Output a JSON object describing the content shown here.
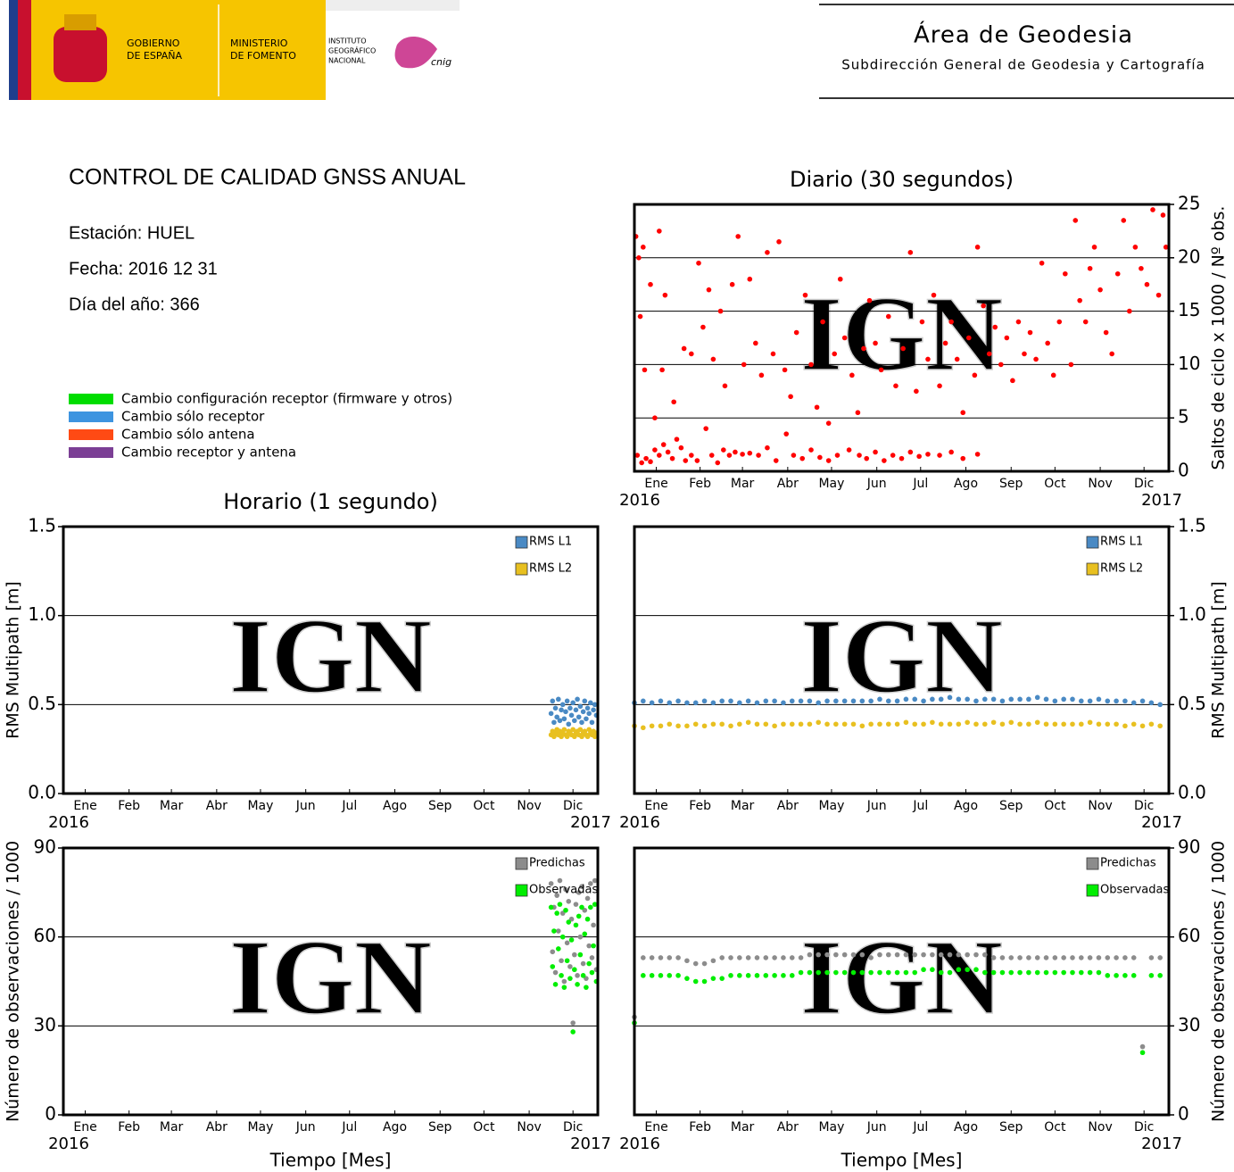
{
  "header": {
    "gobierno": [
      "GOBIERNO",
      "DE ESPAÑA"
    ],
    "ministerio": [
      "MINISTERIO",
      "DE FOMENTO"
    ],
    "instituto": [
      "INSTITUTO",
      "GEOGRÁFICO",
      "NACIONAL"
    ],
    "cnig": "cnig",
    "area": "Área de Geodesia",
    "subdireccion": "Subdirección General de Geodesia y Cartografía"
  },
  "report": {
    "title": "CONTROL DE CALIDAD GNSS ANUAL",
    "estacion": "Estación: HUEL",
    "fecha": "Fecha: 2016 12 31",
    "dia": "Día del año: 366"
  },
  "legend": [
    {
      "label": "Cambio configuración receptor (firmware y otros)",
      "color": "#00dd00"
    },
    {
      "label": "Cambio sólo receptor",
      "color": "#3d94e0"
    },
    {
      "label": "Cambio sólo antena",
      "color": "#ff4a14"
    },
    {
      "label": "Cambio receptor y antena",
      "color": "#7b3f95"
    }
  ],
  "watermark": "IGN",
  "time_axis": {
    "xlim": [
      1,
      367
    ],
    "xticks": [
      {
        "value": 16,
        "label": "Ene"
      },
      {
        "value": 46,
        "label": "Feb"
      },
      {
        "value": 75,
        "label": "Mar"
      },
      {
        "value": 106,
        "label": "Abr"
      },
      {
        "value": 136,
        "label": "May"
      },
      {
        "value": 167,
        "label": "Jun"
      },
      {
        "value": 197,
        "label": "Jul"
      },
      {
        "value": 228,
        "label": "Ago"
      },
      {
        "value": 259,
        "label": "Sep"
      },
      {
        "value": 289,
        "label": "Oct"
      },
      {
        "value": 320,
        "label": "Nov"
      },
      {
        "value": 350,
        "label": "Dic"
      }
    ],
    "year_ticks": [
      {
        "value": 1,
        "label": "2016"
      },
      {
        "value": 367,
        "label": "2017"
      }
    ]
  },
  "chart_data": [
    {
      "type": "scatter",
      "title": "Diario (30 segundos)",
      "y_label": "Saltos de ciclo x 1000 / Nº obs.",
      "y_axis_side": "right",
      "ylim": [
        0,
        25
      ],
      "yticks": [
        0,
        5,
        10,
        15,
        20,
        25
      ],
      "grid": true,
      "color": "#ff0000",
      "x": [
        3,
        6,
        9,
        12,
        15,
        18,
        21,
        24,
        27,
        30,
        33,
        36,
        40,
        44,
        50,
        54,
        58,
        62,
        66,
        70,
        75,
        80,
        86,
        92,
        98,
        105,
        110,
        116,
        122,
        128,
        134,
        140,
        148,
        155,
        160,
        166,
        172,
        178,
        184,
        190,
        196,
        202,
        210,
        218,
        226,
        236,
        2,
        4,
        5,
        7,
        8,
        12,
        15,
        18,
        20,
        22,
        28,
        35,
        40,
        45,
        48,
        52,
        55,
        60,
        63,
        68,
        72,
        76,
        80,
        84,
        88,
        92,
        96,
        100,
        104,
        108,
        112,
        118,
        122,
        126,
        130,
        134,
        138,
        142,
        145,
        150,
        154,
        158,
        162,
        166,
        170,
        175,
        180,
        185,
        190,
        194,
        198,
        202,
        206,
        210,
        214,
        218,
        222,
        226,
        230,
        234,
        236,
        240,
        244,
        248,
        252,
        256,
        260,
        264,
        268,
        272,
        276,
        280,
        284,
        288,
        292,
        296,
        300,
        303,
        306,
        310,
        313,
        316,
        320,
        324,
        328,
        332,
        336,
        340,
        344,
        348,
        352,
        356,
        360,
        363,
        365
      ],
      "values": [
        1.5,
        0.8,
        1.2,
        0.9,
        2.0,
        1.5,
        2.5,
        1.8,
        1.2,
        3.0,
        2.2,
        1.0,
        1.5,
        1.0,
        4.0,
        1.5,
        0.8,
        2.0,
        1.5,
        1.8,
        1.6,
        1.7,
        1.5,
        2.2,
        1.0,
        3.5,
        1.5,
        1.2,
        2.0,
        1.3,
        1.0,
        1.5,
        2.0,
        1.5,
        1.2,
        1.8,
        1.0,
        1.5,
        1.2,
        1.8,
        1.4,
        1.6,
        1.5,
        1.8,
        1.2,
        1.6,
        22,
        20,
        14.5,
        21,
        9.5,
        17.5,
        5,
        22.5,
        9.5,
        16.5,
        6.5,
        11.5,
        11,
        19.5,
        13.5,
        17,
        10.5,
        15,
        8,
        17.5,
        22,
        10,
        18,
        12,
        9,
        20.5,
        11,
        21.5,
        9.5,
        7,
        13,
        16.5,
        10,
        6,
        14,
        4.5,
        11,
        18,
        12.5,
        9,
        5.5,
        11.5,
        16,
        12,
        9.5,
        14.5,
        8,
        11.5,
        20.5,
        7.5,
        14,
        10.5,
        16.5,
        8,
        12,
        14,
        10.5,
        5.5,
        12.5,
        9,
        21,
        15.5,
        11,
        13.5,
        10,
        12.5,
        8.5,
        14,
        11,
        13,
        10.5,
        19.5,
        12,
        9,
        14,
        18.5,
        10,
        23.5,
        16,
        14,
        19,
        21,
        17,
        13,
        11,
        18.5,
        23.5,
        15,
        21,
        19,
        17.5,
        24.5,
        16.5,
        24,
        21
      ]
    },
    {
      "type": "scatter",
      "title": "Horario (1 segundo)",
      "y_label": "RMS Multipath [m]",
      "y_axis_side": "left",
      "ylim": [
        0,
        1.5
      ],
      "yticks": [
        {
          "value": 0,
          "label": "0.0"
        },
        {
          "value": 0.5,
          "label": "0.5"
        },
        {
          "value": 1,
          "label": "1.0"
        },
        {
          "value": 1.5,
          "label": "1.5"
        }
      ],
      "grid": true,
      "x": [
        335,
        336,
        337,
        338,
        339,
        340,
        341,
        342,
        343,
        344,
        345,
        346,
        347,
        348,
        349,
        350,
        351,
        352,
        353,
        354,
        355,
        356,
        357,
        358,
        359,
        360,
        361,
        362,
        363,
        364,
        365,
        366
      ],
      "series": [
        {
          "name": "RMS L1",
          "color": "#4a8ac4",
          "values": [
            0.45,
            0.52,
            0.4,
            0.48,
            0.43,
            0.53,
            0.41,
            0.47,
            0.5,
            0.42,
            0.46,
            0.52,
            0.39,
            0.48,
            0.44,
            0.51,
            0.41,
            0.47,
            0.53,
            0.43,
            0.49,
            0.4,
            0.46,
            0.52,
            0.42,
            0.48,
            0.45,
            0.51,
            0.4,
            0.47,
            0.5,
            0.44
          ]
        },
        {
          "name": "RMS L2",
          "color": "#e8c020",
          "values": [
            0.33,
            0.35,
            0.32,
            0.34,
            0.36,
            0.33,
            0.35,
            0.32,
            0.34,
            0.36,
            0.33,
            0.32,
            0.35,
            0.34,
            0.33,
            0.36,
            0.32,
            0.34,
            0.35,
            0.33,
            0.36,
            0.32,
            0.34,
            0.35,
            0.33,
            0.32,
            0.36,
            0.34,
            0.33,
            0.35,
            0.32,
            0.34
          ]
        }
      ]
    },
    {
      "type": "scatter",
      "y_label": "RMS Multipath [m]",
      "y_axis_side": "right",
      "ylim": [
        0,
        1.5
      ],
      "yticks": [
        {
          "value": 0,
          "label": "0.0"
        },
        {
          "value": 0.5,
          "label": "0.5"
        },
        {
          "value": 1,
          "label": "1.0"
        },
        {
          "value": 1.5,
          "label": "1.5"
        }
      ],
      "grid": true,
      "x": [
        1,
        7,
        13,
        19,
        25,
        31,
        37,
        43,
        49,
        55,
        61,
        67,
        73,
        79,
        85,
        91,
        97,
        103,
        109,
        115,
        121,
        127,
        133,
        139,
        145,
        151,
        157,
        163,
        169,
        175,
        181,
        187,
        193,
        199,
        205,
        211,
        217,
        223,
        229,
        235,
        241,
        247,
        253,
        259,
        265,
        271,
        277,
        283,
        289,
        295,
        301,
        307,
        313,
        319,
        325,
        331,
        337,
        343,
        349,
        355,
        361
      ],
      "series": [
        {
          "name": "RMS L1",
          "color": "#4a8ac4",
          "values": [
            0.51,
            0.52,
            0.51,
            0.52,
            0.51,
            0.52,
            0.51,
            0.51,
            0.52,
            0.51,
            0.52,
            0.52,
            0.51,
            0.52,
            0.51,
            0.52,
            0.52,
            0.51,
            0.52,
            0.52,
            0.52,
            0.51,
            0.52,
            0.52,
            0.52,
            0.52,
            0.52,
            0.52,
            0.53,
            0.52,
            0.52,
            0.53,
            0.53,
            0.52,
            0.53,
            0.53,
            0.54,
            0.53,
            0.53,
            0.52,
            0.53,
            0.53,
            0.52,
            0.53,
            0.53,
            0.53,
            0.54,
            0.53,
            0.52,
            0.53,
            0.53,
            0.52,
            0.52,
            0.53,
            0.52,
            0.52,
            0.52,
            0.51,
            0.52,
            0.51,
            0.5
          ]
        },
        {
          "name": "RMS L2",
          "color": "#e8c020",
          "values": [
            0.38,
            0.37,
            0.38,
            0.38,
            0.39,
            0.38,
            0.38,
            0.39,
            0.38,
            0.39,
            0.39,
            0.38,
            0.39,
            0.4,
            0.39,
            0.39,
            0.38,
            0.39,
            0.39,
            0.39,
            0.39,
            0.4,
            0.39,
            0.39,
            0.39,
            0.39,
            0.38,
            0.39,
            0.39,
            0.39,
            0.39,
            0.4,
            0.39,
            0.39,
            0.4,
            0.39,
            0.39,
            0.39,
            0.4,
            0.39,
            0.39,
            0.4,
            0.39,
            0.4,
            0.39,
            0.39,
            0.4,
            0.39,
            0.39,
            0.39,
            0.39,
            0.39,
            0.4,
            0.39,
            0.39,
            0.39,
            0.38,
            0.39,
            0.38,
            0.39,
            0.38
          ]
        }
      ]
    },
    {
      "type": "scatter",
      "y_label": "Número de observaciones / 1000",
      "x_label": "Tiempo [Mes]",
      "y_axis_side": "left",
      "ylim": [
        0,
        90
      ],
      "yticks": [
        0,
        30,
        60,
        90
      ],
      "grid": true,
      "x": [
        335,
        336,
        337,
        338,
        339,
        340,
        341,
        342,
        343,
        344,
        345,
        346,
        347,
        348,
        349,
        350,
        351,
        352,
        353,
        354,
        355,
        356,
        357,
        358,
        359,
        360,
        361,
        362,
        363,
        364,
        365,
        366
      ],
      "series": [
        {
          "name": "Predichas",
          "color": "#8c8c8c",
          "values": [
            78,
            55,
            70,
            48,
            74,
            62,
            79,
            52,
            68,
            45,
            76,
            58,
            72,
            50,
            66,
            31,
            54,
            71,
            47,
            75,
            60,
            77,
            51,
            69,
            46,
            73,
            57,
            78,
            53,
            64,
            79,
            49
          ]
        },
        {
          "name": "Observadas",
          "color": "#00ee00",
          "values": [
            70,
            50,
            62,
            44,
            68,
            56,
            71,
            47,
            60,
            43,
            69,
            52,
            65,
            46,
            59,
            28,
            49,
            64,
            44,
            67,
            54,
            70,
            47,
            61,
            43,
            66,
            51,
            70,
            48,
            57,
            71,
            45
          ]
        }
      ]
    },
    {
      "type": "scatter",
      "y_label": "Número de observaciones / 1000",
      "x_label": "Tiempo [Mes]",
      "y_axis_side": "right",
      "ylim": [
        0,
        90
      ],
      "yticks": [
        0,
        30,
        60,
        90
      ],
      "grid": true,
      "x": [
        1,
        7,
        13,
        19,
        25,
        31,
        37,
        43,
        49,
        55,
        61,
        67,
        73,
        79,
        85,
        91,
        97,
        103,
        109,
        115,
        121,
        127,
        133,
        139,
        145,
        151,
        157,
        163,
        169,
        175,
        181,
        187,
        193,
        199,
        205,
        211,
        217,
        223,
        229,
        235,
        241,
        247,
        253,
        259,
        265,
        271,
        277,
        283,
        289,
        295,
        301,
        307,
        313,
        319,
        325,
        331,
        337,
        343,
        349,
        355,
        361
      ],
      "series": [
        {
          "name": "Predichas",
          "color": "#8c8c8c",
          "values": [
            33,
            53,
            53,
            53,
            53,
            53,
            52,
            51,
            51,
            52,
            53,
            53,
            53,
            53,
            53,
            53,
            53,
            53,
            53,
            53,
            54,
            54,
            54,
            54,
            54,
            54,
            54,
            53,
            54,
            54,
            54,
            54,
            54,
            54,
            54,
            54,
            54,
            54,
            54,
            54,
            54,
            53,
            53,
            53,
            53,
            53,
            53,
            53,
            53,
            53,
            53,
            53,
            53,
            53,
            53,
            53,
            53,
            53,
            23,
            53,
            53
          ]
        },
        {
          "name": "Observadas",
          "color": "#00ee00",
          "values": [
            31,
            47,
            47,
            47,
            47,
            47,
            46,
            45,
            45,
            46,
            46,
            47,
            47,
            47,
            47,
            47,
            47,
            47,
            47,
            48,
            48,
            48,
            48,
            48,
            48,
            48,
            48,
            48,
            48,
            48,
            48,
            48,
            48,
            49,
            49,
            48,
            48,
            49,
            49,
            49,
            48,
            48,
            48,
            48,
            48,
            48,
            48,
            48,
            48,
            48,
            48,
            48,
            48,
            48,
            47,
            47,
            47,
            47,
            21,
            47,
            47
          ]
        }
      ]
    }
  ]
}
